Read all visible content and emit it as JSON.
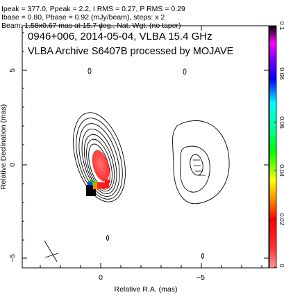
{
  "header": {
    "line0": "Ipeak = 377.0, Ppeak = 2.2, I RMS = 0.27, P RMS = 0.29",
    "line1": "Ibase = 0.80, Pbase = 0.92 (mJy/beam), steps: x 2",
    "line2": "Beam: 1.58x0.67 mas at 15.7 deg., Nat. Wgt. (no taper)"
  },
  "plot": {
    "title_line1": "0946+006, 2014-05-04, VLBA 15.4 GHz",
    "title_line2": "VLBA Archive S6407B processed by MOJAVE",
    "xlabel": "Relative R.A. (mas)",
    "ylabel": "Relative Declination (mas)",
    "xticks": [
      "0",
      "−5"
    ],
    "yticks": [
      "5",
      "0",
      "−5"
    ]
  },
  "colorbar": {
    "ticks": [
      "0.1",
      "0.08",
      "0.06",
      "0.04",
      "0.02",
      "0"
    ],
    "range": [
      0,
      0.1
    ]
  }
}
